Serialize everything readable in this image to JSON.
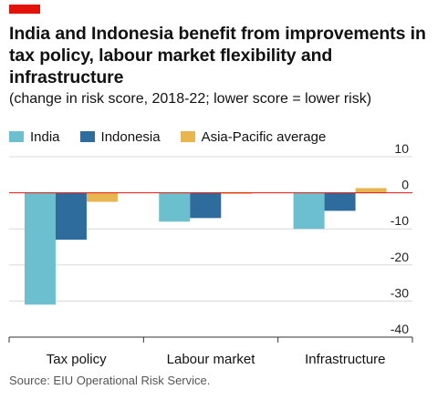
{
  "header": {
    "title": "India and Indonesia benefit from improvements in tax policy, labour market flexibility and infrastructure",
    "subtitle": "(change in risk score, 2018-22; lower score = lower risk)"
  },
  "footer": {
    "source": "Source: EIU Operational Risk Service."
  },
  "colors": {
    "accent": "#e3120b",
    "zero_line": "#e3120b",
    "grid": "#d9d9d9"
  },
  "chart_data": {
    "type": "bar",
    "title": "India and Indonesia benefit from improvements in tax policy, labour market flexibility and infrastructure",
    "subtitle": "(change in risk score, 2018-22; lower score = lower risk)",
    "categories": [
      "Tax policy",
      "Labour market",
      "Infrastructure"
    ],
    "series": [
      {
        "name": "India",
        "color": "#6bbfcf",
        "values": [
          -31,
          -8,
          -10
        ]
      },
      {
        "name": "Indonesia",
        "color": "#2d6c9c",
        "values": [
          -13,
          -7,
          -5
        ]
      },
      {
        "name": "Asia-Pacific average",
        "color": "#e8b550",
        "values": [
          -2.5,
          -0.3,
          1.3
        ]
      }
    ],
    "yticks": [
      10,
      0,
      -10,
      -20,
      -30,
      -40
    ],
    "ytick_labels": [
      "10",
      "0",
      "-10",
      "-20",
      "-30",
      "-40"
    ],
    "ylim": [
      -40,
      10
    ],
    "yaxis_side": "right",
    "grid": true,
    "legend_position": "top-left",
    "xlabel": "",
    "ylabel": ""
  }
}
